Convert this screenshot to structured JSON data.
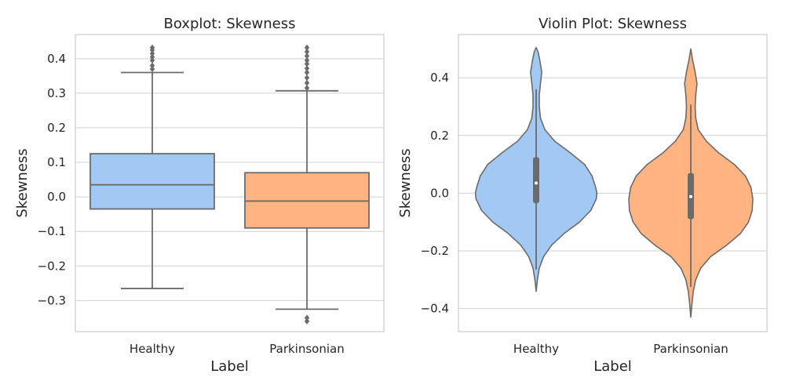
{
  "chart_data": [
    {
      "type": "box",
      "title": "Boxplot: Skewness",
      "xlabel": "Label",
      "ylabel": "Skewness",
      "ylim": [
        -0.39,
        0.47
      ],
      "yticks": [
        -0.3,
        -0.2,
        -0.1,
        0.0,
        0.1,
        0.2,
        0.3,
        0.4
      ],
      "ytick_labels": [
        "−0.3",
        "−0.2",
        "−0.1",
        "0.0",
        "0.1",
        "0.2",
        "0.3",
        "0.4"
      ],
      "grid": true,
      "categories": [
        "Healthy",
        "Parkinsonian"
      ],
      "series": [
        {
          "category": "Healthy",
          "color": "#a1c9f4",
          "whisker_low": -0.265,
          "q1": -0.035,
          "median": 0.035,
          "q3": 0.125,
          "whisker_high": 0.36,
          "outliers": [
            0.37,
            0.38,
            0.395,
            0.405,
            0.415,
            0.425,
            0.432
          ]
        },
        {
          "category": "Parkinsonian",
          "color": "#ffb482",
          "whisker_low": -0.325,
          "q1": -0.09,
          "median": -0.012,
          "q3": 0.07,
          "whisker_high": 0.307,
          "outliers": [
            0.315,
            0.33,
            0.345,
            0.36,
            0.372,
            0.385,
            0.395,
            0.408,
            0.42,
            0.432,
            -0.35,
            -0.36
          ]
        }
      ]
    },
    {
      "type": "violin",
      "title": "Violin Plot: Skewness",
      "xlabel": "Label",
      "ylabel": "Skewness",
      "ylim": [
        -0.48,
        0.55
      ],
      "yticks": [
        -0.4,
        -0.2,
        0.0,
        0.2,
        0.4
      ],
      "ytick_labels": [
        "−0.4",
        "−0.2",
        "0.0",
        "0.2",
        "0.4"
      ],
      "grid": true,
      "categories": [
        "Healthy",
        "Parkinsonian"
      ],
      "series": [
        {
          "category": "Healthy",
          "color": "#a1c9f4",
          "min": -0.34,
          "max": 0.505,
          "q1": -0.035,
          "median": 0.035,
          "q3": 0.125,
          "whisker_low": -0.265,
          "whisker_high": 0.36,
          "density_y": [
            -0.34,
            -0.3,
            -0.26,
            -0.22,
            -0.18,
            -0.14,
            -0.1,
            -0.06,
            -0.02,
            0.0,
            0.02,
            0.06,
            0.1,
            0.14,
            0.18,
            0.22,
            0.26,
            0.3,
            0.34,
            0.38,
            0.42,
            0.46,
            0.49,
            0.505
          ],
          "density_w": [
            0.0,
            0.02,
            0.05,
            0.12,
            0.25,
            0.45,
            0.7,
            0.88,
            0.97,
            0.98,
            0.96,
            0.9,
            0.78,
            0.55,
            0.3,
            0.14,
            0.07,
            0.05,
            0.05,
            0.07,
            0.09,
            0.06,
            0.03,
            0.0
          ]
        },
        {
          "category": "Parkinsonian",
          "color": "#ffb482",
          "min": -0.43,
          "max": 0.5,
          "q1": -0.09,
          "median": -0.012,
          "q3": 0.07,
          "whisker_low": -0.325,
          "whisker_high": 0.307,
          "density_y": [
            -0.43,
            -0.38,
            -0.34,
            -0.3,
            -0.26,
            -0.22,
            -0.18,
            -0.14,
            -0.1,
            -0.06,
            -0.02,
            0.02,
            0.06,
            0.1,
            0.14,
            0.18,
            0.22,
            0.26,
            0.3,
            0.34,
            0.38,
            0.42,
            0.46,
            0.5
          ],
          "density_w": [
            0.0,
            0.02,
            0.04,
            0.08,
            0.16,
            0.32,
            0.58,
            0.8,
            0.93,
            0.99,
            1.0,
            0.97,
            0.88,
            0.7,
            0.45,
            0.25,
            0.12,
            0.08,
            0.07,
            0.08,
            0.1,
            0.07,
            0.03,
            0.0
          ]
        }
      ]
    }
  ]
}
